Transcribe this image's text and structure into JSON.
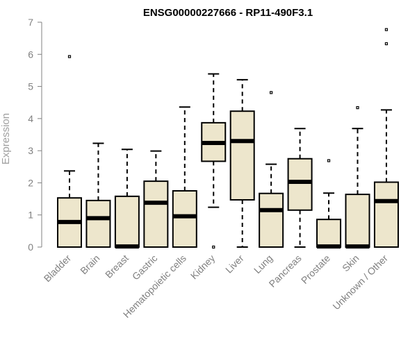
{
  "colors": {
    "box_fill": "#ede6cc",
    "box_stroke": "#000000",
    "axis": "#808080",
    "text": "#808080"
  },
  "chart_data": {
    "type": "boxplot",
    "title": "ENSG00000227666 - RP11-490F3.1",
    "xlabel": "",
    "ylabel": "Expression",
    "ylim": [
      0,
      7
    ],
    "yticks": [
      0,
      1,
      2,
      3,
      4,
      5,
      6,
      7
    ],
    "categories": [
      "Bladder",
      "Brain",
      "Breast",
      "Gastric",
      "Hematopoietic cells",
      "Kidney",
      "Liver",
      "Lung",
      "Pancreas",
      "Prostate",
      "Skin",
      "Unknown / Other"
    ],
    "boxes": [
      {
        "name": "Bladder",
        "whisker_low": 0,
        "q1": 0,
        "median": 0.78,
        "q3": 1.53,
        "whisker_high": 2.37,
        "outliers": [
          5.93
        ]
      },
      {
        "name": "Brain",
        "whisker_low": 0,
        "q1": 0,
        "median": 0.9,
        "q3": 1.45,
        "whisker_high": 3.23,
        "outliers": []
      },
      {
        "name": "Breast",
        "whisker_low": 0,
        "q1": 0,
        "median": 0.02,
        "q3": 1.58,
        "whisker_high": 3.04,
        "outliers": []
      },
      {
        "name": "Gastric",
        "whisker_low": 0,
        "q1": 0,
        "median": 1.38,
        "q3": 2.05,
        "whisker_high": 2.99,
        "outliers": []
      },
      {
        "name": "Hematopoietic cells",
        "whisker_low": 0,
        "q1": 0,
        "median": 0.96,
        "q3": 1.75,
        "whisker_high": 4.36,
        "outliers": []
      },
      {
        "name": "Kidney",
        "whisker_low": 1.24,
        "q1": 2.67,
        "median": 3.24,
        "q3": 3.87,
        "whisker_high": 5.39,
        "outliers": [
          0.0
        ]
      },
      {
        "name": "Liver",
        "whisker_low": 0,
        "q1": 1.47,
        "median": 3.3,
        "q3": 4.23,
        "whisker_high": 5.21,
        "outliers": []
      },
      {
        "name": "Lung",
        "whisker_low": 0,
        "q1": 0,
        "median": 1.15,
        "q3": 1.67,
        "whisker_high": 2.58,
        "outliers": [
          4.81
        ]
      },
      {
        "name": "Pancreas",
        "whisker_low": 0,
        "q1": 1.15,
        "median": 2.03,
        "q3": 2.75,
        "whisker_high": 3.69,
        "outliers": []
      },
      {
        "name": "Prostate",
        "whisker_low": 0,
        "q1": 0,
        "median": 0.02,
        "q3": 0.86,
        "whisker_high": 1.68,
        "outliers": [
          2.69
        ]
      },
      {
        "name": "Skin",
        "whisker_low": 0,
        "q1": 0,
        "median": 0.02,
        "q3": 1.64,
        "whisker_high": 3.69,
        "outliers": [
          4.34
        ]
      },
      {
        "name": "Unknown / Other",
        "whisker_low": 0,
        "q1": 0,
        "median": 1.43,
        "q3": 2.02,
        "whisker_high": 4.27,
        "outliers": [
          6.33,
          6.77
        ]
      }
    ]
  }
}
